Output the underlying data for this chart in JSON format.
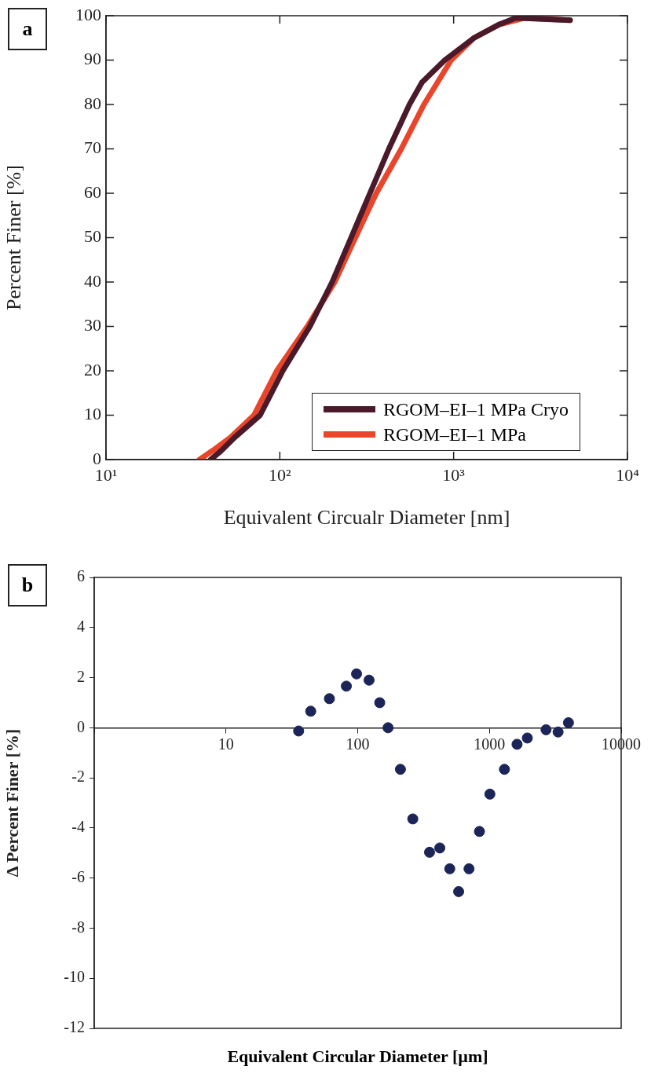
{
  "chart_data": [
    {
      "type": "line",
      "xlabel": "Equivalent Circualr Diameter [nm]",
      "ylabel": "Percent Finer [%]",
      "annotations": [
        "a"
      ],
      "log": "x",
      "grid": false,
      "legend": "bottom right",
      "xlim": [
        10,
        10000
      ],
      "xticks": [
        {
          "value": 10,
          "label": "10¹"
        },
        {
          "value": 100,
          "label": "10²"
        },
        {
          "value": 1000,
          "label": "10³"
        },
        {
          "value": 10000,
          "label": "10⁴"
        }
      ],
      "ylim": [
        0,
        100
      ],
      "yticks": [
        0,
        10,
        20,
        30,
        40,
        50,
        60,
        70,
        80,
        90,
        100
      ],
      "series": [
        {
          "name": "RGOM–EI–1 MPa Cryo",
          "color": "#4a1a2a",
          "x": [
            40,
            46,
            55,
            77,
            104,
            149,
            200,
            257,
            330,
            424,
            557,
            658,
            890,
            1310,
            1820,
            2280,
            4680
          ],
          "values": [
            0,
            2,
            5,
            10,
            20,
            30,
            40,
            50,
            60,
            70,
            80,
            85,
            90,
            95,
            98,
            99.5,
            99
          ]
        },
        {
          "name": "RGOM–EI–1 MPa",
          "color": "#e8452a",
          "x": [
            34.5,
            41,
            52,
            71,
            96,
            144,
            207,
            272,
            359,
            500,
            675,
            968,
            1310,
            1820,
            2560,
            4680
          ],
          "values": [
            0,
            2,
            5,
            10,
            20,
            30,
            40,
            50,
            60,
            70,
            80,
            90,
            95,
            98,
            99.5,
            99
          ]
        }
      ]
    },
    {
      "type": "scatter",
      "xlabel": "Equivalent Circular Diameter [µm]",
      "ylabel": "Δ Percent Finer [%]",
      "annotations": [
        "b"
      ],
      "log": "x",
      "marker": "circle",
      "color": "#1c2557",
      "xlim": [
        1,
        10000
      ],
      "xticks": [
        {
          "value": 1,
          "label": null
        },
        10,
        100,
        1000,
        10000
      ],
      "ylim": [
        -12,
        6
      ],
      "yticks": [
        -12,
        -10,
        -8,
        -6,
        -4,
        -2,
        0,
        2,
        4,
        6
      ],
      "x": [
        35.6,
        44,
        61,
        82,
        98,
        122,
        147,
        170,
        211,
        262,
        351,
        420,
        500,
        584,
        700,
        840,
        1008,
        1300,
        1620,
        1940,
        2690,
        3320,
        3980
      ],
      "values": [
        -0.13,
        0.66,
        1.16,
        1.66,
        2.15,
        1.9,
        1.0,
        0,
        -1.66,
        -3.64,
        -4.97,
        -4.8,
        -5.63,
        -6.54,
        -5.63,
        -4.14,
        -2.65,
        -1.66,
        -0.66,
        -0.41,
        -0.08,
        -0.17,
        0.2
      ]
    }
  ]
}
